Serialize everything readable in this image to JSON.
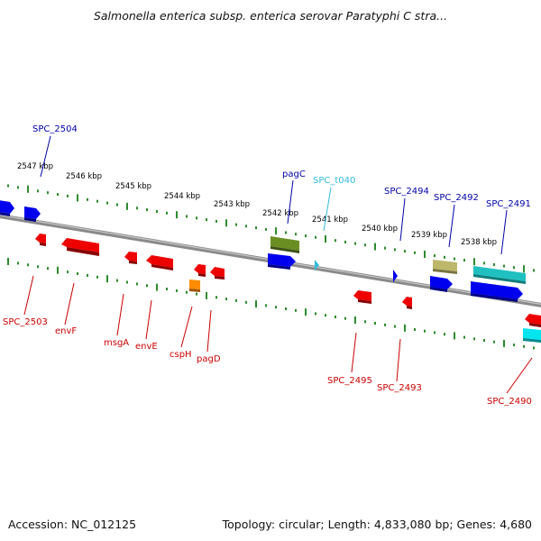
{
  "title": "Salmonella enterica subsp. enterica serovar Paratyphi C stra...",
  "footer": {
    "accession": "Accession: NC_012125",
    "summary": "Topology: circular; Length: 4,833,080 bp; Genes: 4,680"
  },
  "colors": {
    "backbone": "#8a8a8a",
    "tick": "#2e8b2e",
    "label_forward": "#0000aa",
    "label_reverse": "#cc0000",
    "label_rna": "#33bbdd"
  },
  "ruler": {
    "unit": "kbp",
    "labels": [
      "2547 kbp",
      "2546 kbp",
      "2545 kbp",
      "2544 kbp",
      "2543 kbp",
      "2542 kbp",
      "2541 kbp",
      "2540 kbp",
      "2539 kbp",
      "2538 kbp"
    ]
  },
  "features": {
    "forward_labels": [
      "SPC_2504",
      "pagC",
      "SPC_t040",
      "SPC_2494",
      "SPC_2492",
      "SPC_2491"
    ],
    "reverse_labels": [
      "SPC_2503",
      "envF",
      "msgA",
      "envE",
      "cspH",
      "pagD",
      "SPC_2495",
      "SPC_2493",
      "SPC_2490"
    ]
  }
}
